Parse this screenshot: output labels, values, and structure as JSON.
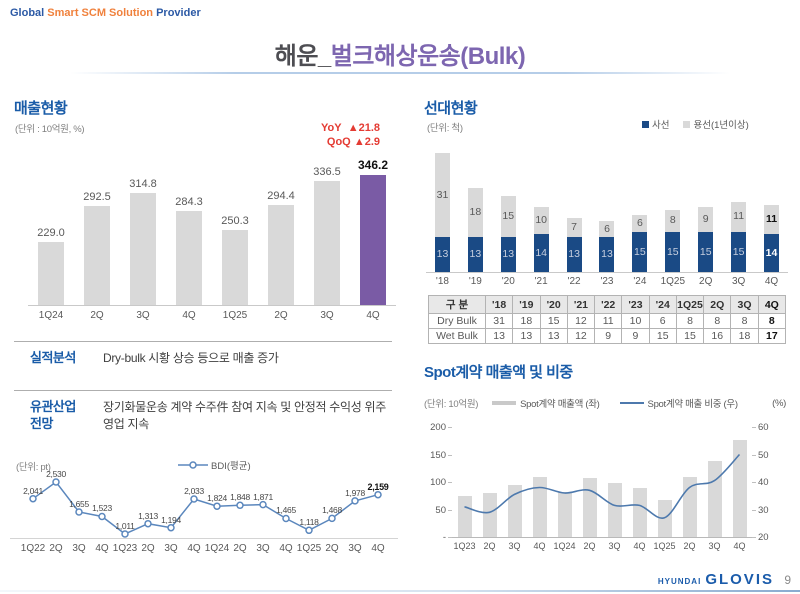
{
  "brand": {
    "global": "Global",
    "smart": "Smart SCM Solution",
    "provider": "Provider"
  },
  "title": {
    "prefix": "해운_",
    "main": "벌크해상운송(Bulk)"
  },
  "sections": {
    "revenue": {
      "heading": "매출현황",
      "unit": "(단위 : 10억원, %)",
      "yoy_label": "YoY",
      "yoy_value": "▲21.8",
      "qoq_label": "QoQ",
      "qoq_value": "▲2.9"
    },
    "analysis": {
      "heading": "실적분석",
      "text": "Dry-bulk 시황 상승 등으로 매출 증가"
    },
    "outlook": {
      "heading_line1": "유관산업",
      "heading_line2": "전망",
      "text": "장기화물운송 계약 수주件 참여 지속 및 안정적 수익성 위주 영업 지속"
    },
    "fleet": {
      "heading": "선대현황",
      "unit": "(단위: 척)"
    },
    "bdi": {
      "unit": "(단위: pt)",
      "legend": "BDI(평균)"
    },
    "spot": {
      "heading": "Spot계약 매출액 및 비중",
      "unit": "(단위: 10억원)",
      "legend_bar": "Spot계약 매출액 (좌)",
      "legend_line": "Spot계약 매출 비중 (우)",
      "right_unit": "(%)"
    }
  },
  "footer": {
    "logo_hyundai": "HYUNDAI",
    "logo_glovis": "GLOVIS",
    "page": "9"
  },
  "colors": {
    "accent_blue": "#1a5ca8",
    "brand_orange": "#f0813c",
    "title_purple": "#7d66b0",
    "bar_gray": "#d9d9d9",
    "bar_purple": "#7a5ba5",
    "navy": "#1a4a85",
    "alert_red": "#e43b33",
    "bdi_line": "#5b87bd",
    "spot_line": "#4d79ad"
  },
  "chart_data": [
    {
      "id": "revenue",
      "type": "bar",
      "title": "매출현황",
      "ylabel": "10억원",
      "categories": [
        "1Q24",
        "2Q",
        "3Q",
        "4Q",
        "1Q25",
        "2Q",
        "3Q",
        "4Q"
      ],
      "values": [
        229.0,
        292.5,
        314.8,
        284.3,
        250.3,
        294.4,
        336.5,
        346.2
      ],
      "highlight_index": 7,
      "bar_color": "#d9d9d9",
      "highlight_color": "#7a5ba5",
      "yoy": 21.8,
      "qoq": 2.9
    },
    {
      "id": "fleet",
      "type": "stacked-bar",
      "title": "선대현황",
      "ylabel": "척",
      "categories": [
        "'18",
        "'19",
        "'20",
        "'21",
        "'22",
        "'23",
        "'24",
        "1Q25",
        "2Q",
        "3Q",
        "4Q"
      ],
      "series": [
        {
          "name": "사선",
          "color": "#1a4a85",
          "values": [
            13,
            13,
            13,
            14,
            13,
            13,
            15,
            15,
            15,
            15,
            14
          ]
        },
        {
          "name": "용선(1년이상)",
          "color": "#d9d9d9",
          "values": [
            31,
            18,
            15,
            10,
            7,
            6,
            6,
            8,
            9,
            11,
            11
          ]
        }
      ]
    },
    {
      "id": "fleet_table",
      "type": "table",
      "header": [
        "구 분",
        "'18",
        "'19",
        "'20",
        "'21",
        "'22",
        "'23",
        "'24",
        "1Q25",
        "2Q",
        "3Q",
        "4Q"
      ],
      "rows": [
        [
          "Dry Bulk",
          31,
          18,
          15,
          12,
          11,
          10,
          6,
          8,
          8,
          8,
          8
        ],
        [
          "Wet Bulk",
          13,
          13,
          13,
          12,
          9,
          9,
          15,
          15,
          16,
          18,
          17
        ]
      ]
    },
    {
      "id": "bdi",
      "type": "line",
      "title": "BDI(평균)",
      "ylabel": "pt",
      "categories": [
        "1Q22",
        "2Q",
        "3Q",
        "4Q",
        "1Q23",
        "2Q",
        "3Q",
        "4Q",
        "1Q24",
        "2Q",
        "3Q",
        "4Q",
        "1Q25",
        "2Q",
        "3Q",
        "4Q"
      ],
      "values": [
        2041,
        2530,
        1655,
        1523,
        1011,
        1313,
        1194,
        2033,
        1824,
        1848,
        1871,
        1465,
        1118,
        1468,
        1978,
        2159
      ],
      "highlight_index": 15,
      "line_color": "#5b87bd"
    },
    {
      "id": "spot",
      "type": "bar+line",
      "title": "Spot계약 매출액 및 비중",
      "categories": [
        "1Q23",
        "2Q",
        "3Q",
        "4Q",
        "1Q24",
        "2Q",
        "3Q",
        "4Q",
        "1Q25",
        "2Q",
        "3Q",
        "4Q"
      ],
      "series": [
        {
          "name": "Spot계약 매출액 (좌)",
          "type": "bar",
          "axis": "left",
          "color": "#d9d9d9",
          "values": [
            75,
            80,
            94,
            109,
            81,
            107,
            99,
            89,
            67,
            110,
            138,
            176
          ]
        },
        {
          "name": "Spot계약 매출 비중 (우)",
          "type": "line",
          "axis": "right",
          "color": "#4d79ad",
          "values": [
            31,
            29,
            35.5,
            38,
            36,
            37,
            31.5,
            31.5,
            27,
            38,
            40.5,
            50
          ]
        }
      ],
      "left_axis": {
        "ticks": [
          "200",
          "150",
          "100",
          "50",
          "-"
        ],
        "min": 0,
        "max": 200
      },
      "right_axis": {
        "ticks": [
          "60",
          "50",
          "40",
          "30",
          "20"
        ],
        "min": 20,
        "max": 60
      }
    }
  ]
}
